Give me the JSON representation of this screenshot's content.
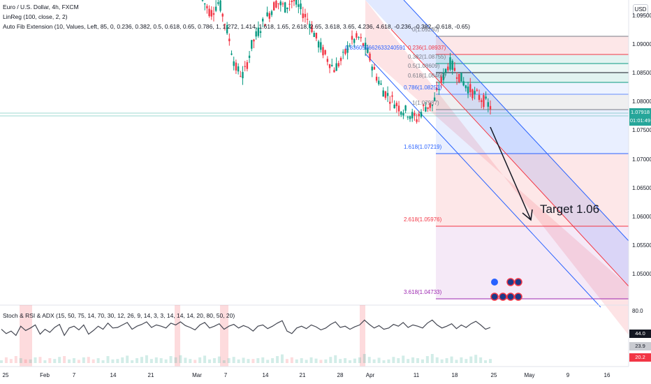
{
  "header": {
    "title": "Euro / U.S. Dollar, 4h, FXCM",
    "linreg": "LinReg (100, close, 2, 2)",
    "fib": "Auto Fib Extension (10, Values, Left, 85, 0, 0.236, 0.382, 0.5, 0.618, 0.65, 0.786, 1, 1.272, 1.414, 1.618, 1.65, 2.618, 2.65, 3.618, 3.65, 4.236, 4.618, -0.236, -0.382, -0.618, -0.65)"
  },
  "indicator": {
    "label": "Stoch & RSI & ADX (15, 50, 75, 14, 70, 30, 12, 26, 9, 14, 3, 3, 14, 14, 14, 20, 80, 50, 20)",
    "scale_top": "80.0",
    "val1": "44.0",
    "val2": "23.9",
    "val3": "20.2",
    "colors": {
      "val1": "#131722",
      "val2": "#c9cbd1",
      "val3": "#f23645"
    }
  },
  "currency": "USD",
  "price_axis": [
    "1.09500",
    "1.09000",
    "1.08500",
    "1.08000",
    "1.07500",
    "1.07000",
    "1.06500",
    "1.06000",
    "1.05500",
    "1.05000"
  ],
  "last_price": {
    "value": "1.07918",
    "timer": "01:01:49",
    "color": "#26a69a"
  },
  "time_axis": [
    "25",
    "Feb",
    "7",
    "14",
    "21",
    "Mar",
    "7",
    "14",
    "21",
    "28",
    "Apr",
    "11",
    "18",
    "25",
    "May",
    "9",
    "16"
  ],
  "fib_labels": [
    {
      "text": "0(1.09230)",
      "color": "#787b86"
    },
    {
      "text": "0.836059662633240591",
      "color": "#2962ff"
    },
    {
      "text": "0.236(1.08937)",
      "color": "#f23645"
    },
    {
      "text": "0.382(1.08755)",
      "color": "#787b86"
    },
    {
      "text": "0.5(1.08609)",
      "color": "#787b86"
    },
    {
      "text": "0.618(1.08462)",
      "color": "#787b86"
    },
    {
      "text": "0.786(1.08253)",
      "color": "#2962ff"
    },
    {
      "text": "1(1.07987)",
      "color": "#787b86"
    },
    {
      "text": "1.618(1.07219)",
      "color": "#2962ff"
    },
    {
      "text": "2.618(1.05976)",
      "color": "#f23645"
    },
    {
      "text": "3.618(1.04733)",
      "color": "#9c27b0"
    }
  ],
  "annotation": "Target 1.06",
  "chart_data": {
    "type": "line",
    "title": "Euro / U.S. Dollar, 4h, FXCM",
    "ylim": [
      1.0455,
      1.0978
    ],
    "price_path": [
      [
        0,
        1.0978
      ],
      [
        1,
        1.0955
      ],
      [
        2,
        1.0975
      ],
      [
        3,
        1.0925
      ],
      [
        4,
        1.086
      ],
      [
        5,
        1.0845
      ],
      [
        6,
        1.09
      ],
      [
        7,
        1.093
      ],
      [
        8,
        1.0952
      ],
      [
        9,
        1.0975
      ],
      [
        10,
        1.0965
      ],
      [
        11,
        1.0978
      ],
      [
        12,
        1.096
      ],
      [
        13,
        1.094
      ],
      [
        14,
        1.0905
      ],
      [
        15,
        1.088
      ],
      [
        16,
        1.0858
      ],
      [
        17,
        1.0875
      ],
      [
        18,
        1.0905
      ],
      [
        19,
        1.0912
      ],
      [
        20,
        1.089
      ],
      [
        21,
        1.085
      ],
      [
        22,
        1.082
      ],
      [
        23,
        1.0805
      ],
      [
        24,
        1.079
      ],
      [
        25,
        1.0782
      ],
      [
        26,
        1.077
      ],
      [
        27,
        1.0792
      ],
      [
        28,
        1.0795
      ],
      [
        29,
        1.0835
      ],
      [
        30,
        1.087
      ],
      [
        31,
        1.085
      ],
      [
        32,
        1.083
      ],
      [
        33,
        1.0815
      ],
      [
        34,
        1.0805
      ],
      [
        35,
        1.0792
      ]
    ],
    "stoch": [
      55,
      48,
      52,
      45,
      60,
      53,
      57,
      62,
      47,
      55,
      50,
      58,
      63,
      45,
      57,
      60,
      54,
      62,
      47,
      53,
      60,
      55,
      65,
      57,
      58,
      62,
      66,
      55,
      60,
      63,
      67,
      58,
      62,
      60,
      57,
      65,
      62,
      67,
      61,
      58,
      54,
      62,
      66,
      57,
      60,
      64,
      55,
      60,
      63,
      57,
      61,
      58,
      52,
      60,
      62,
      56,
      60,
      65,
      69,
      52,
      48,
      57,
      60,
      56,
      62,
      59,
      54,
      57,
      63,
      67,
      58,
      60,
      55,
      59,
      62,
      70,
      63,
      57,
      61,
      55,
      57,
      63,
      60,
      66,
      58,
      62,
      60,
      57,
      65,
      70,
      62,
      57,
      60,
      64,
      56,
      62,
      58,
      64,
      68,
      62,
      55,
      58
    ],
    "fib_levels": [
      1.0923,
      1.08937,
      1.08755,
      1.08609,
      1.08462,
      1.08253,
      1.07987,
      1.07219,
      1.05976,
      1.04733
    ]
  }
}
